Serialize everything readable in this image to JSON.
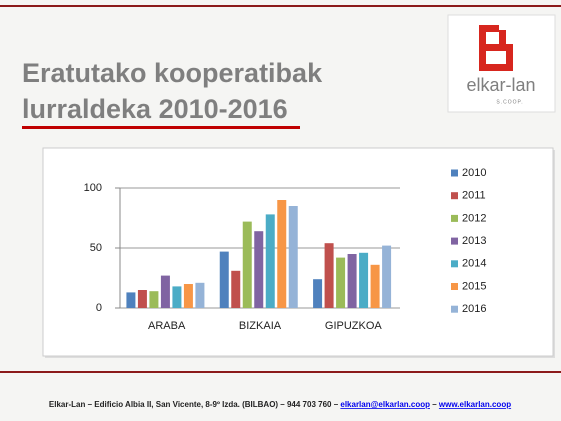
{
  "slide": {
    "title_line1": "Eratutako kooperatibak",
    "title_line2": "lurraldeka 2010-2016"
  },
  "logo": {
    "name": "elkar-lan",
    "subtitle": "S.COOP."
  },
  "footer": {
    "text": "Elkar-Lan – Edificio Albia II, San Vicente, 8-9º Izda. (BILBAO) – 944 703 760 –",
    "email": "elkarlan@elkarlan.coop",
    "separator": "–",
    "website": "www.elkarlan.coop"
  },
  "chart_data": {
    "type": "bar",
    "categories": [
      "ARABA",
      "BIZKAIA",
      "GIPUZKOA"
    ],
    "series": [
      {
        "name": "2010",
        "color": "#4f81bd",
        "values": [
          13,
          47,
          24
        ]
      },
      {
        "name": "2011",
        "color": "#c0504d",
        "values": [
          15,
          31,
          54
        ]
      },
      {
        "name": "2012",
        "color": "#9bbb59",
        "values": [
          14,
          72,
          42
        ]
      },
      {
        "name": "2013",
        "color": "#8064a2",
        "values": [
          27,
          64,
          45
        ]
      },
      {
        "name": "2014",
        "color": "#4bacc6",
        "values": [
          18,
          78,
          46
        ]
      },
      {
        "name": "2015",
        "color": "#f79646",
        "values": [
          20,
          90,
          36
        ]
      },
      {
        "name": "2016",
        "color": "#95b3d7",
        "values": [
          21,
          85,
          52
        ]
      }
    ],
    "ylim": [
      0,
      100
    ],
    "yticks": [
      0,
      50,
      100
    ],
    "grid": true,
    "legend": "right"
  }
}
